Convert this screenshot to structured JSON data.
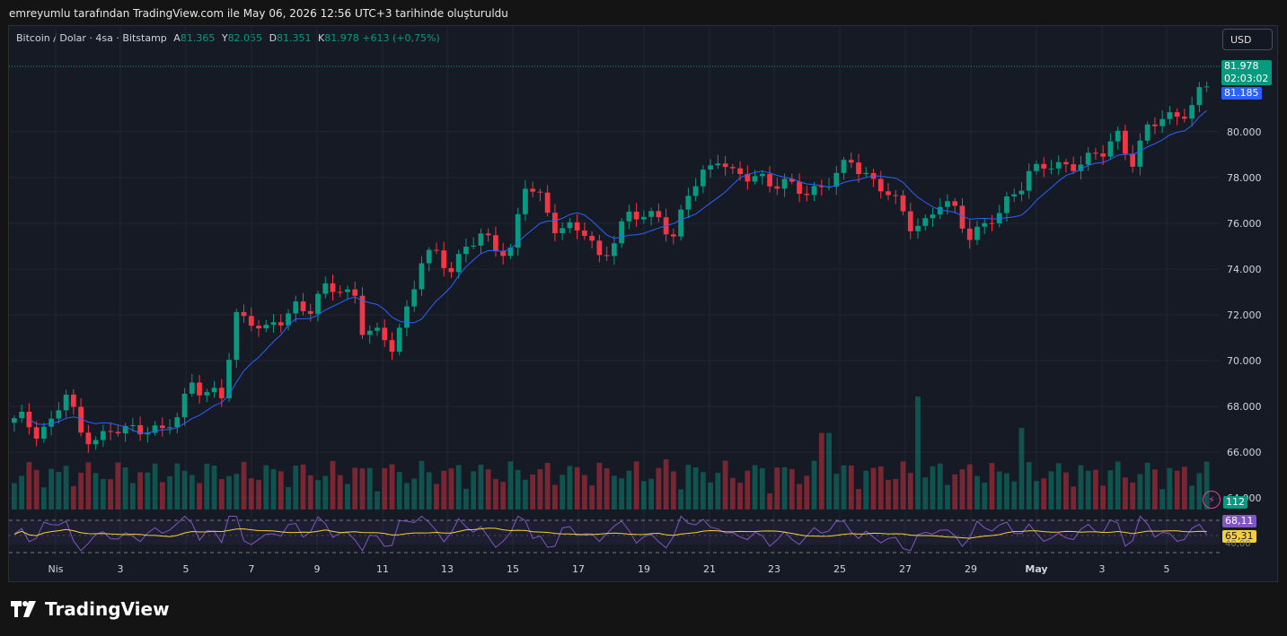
{
  "caption": "emreyumlu tarafından TradingView.com ile May 06, 2026 12:56 UTC+3 tarihinde oluşturuldu",
  "symbol": {
    "name": "Bitcoin / Dolar · 4sa · Bitstamp",
    "open_label": "A",
    "open": "81.365",
    "high_label": "Y",
    "high": "82.055",
    "low_label": "D",
    "low": "81.351",
    "close_label": "K",
    "close": "81.978",
    "change": "+613 (+0,75%)"
  },
  "currency_button": "USD",
  "price_tag": {
    "price": "81.978",
    "countdown": "02:03:02"
  },
  "ma_tag": "81.185",
  "volume_tag": "112",
  "rsi_tag": "68,11",
  "rsi_ma_tag": "65,31",
  "rsi_level_label": "40,00",
  "brand": "TradingView",
  "colors": {
    "up": "#089981",
    "down": "#f23645",
    "ma": "#2962ff",
    "rsi": "#7e57c2",
    "rsi_ma": "#f5cf3b",
    "bg": "#161a25"
  },
  "chart_data": {
    "type": "candlestick",
    "y_ticks": [
      "80.000",
      "78.000",
      "76.000",
      "74.000",
      "72.000",
      "70.000",
      "68.000",
      "66.000",
      "64.000"
    ],
    "x_ticks": [
      "Nis",
      "3",
      "5",
      "7",
      "9",
      "11",
      "13",
      "15",
      "17",
      "19",
      "21",
      "23",
      "25",
      "27",
      "29",
      "May",
      "3",
      "5"
    ],
    "price_range": [
      63500,
      83400
    ],
    "close_anchors": [
      [
        1,
        67400
      ],
      [
        3,
        67000
      ],
      [
        5,
        67300
      ],
      [
        7,
        68500
      ],
      [
        9,
        66800
      ],
      [
        12,
        66700
      ],
      [
        14,
        66900
      ],
      [
        16,
        67000
      ],
      [
        18,
        67200
      ],
      [
        20,
        66800
      ],
      [
        22,
        67500
      ],
      [
        24,
        69200
      ],
      [
        26,
        68600
      ],
      [
        28,
        68300
      ],
      [
        30,
        72000
      ],
      [
        32,
        71900
      ],
      [
        34,
        71200
      ],
      [
        36,
        71700
      ],
      [
        38,
        72500
      ],
      [
        40,
        72300
      ],
      [
        42,
        73000
      ],
      [
        44,
        73200
      ],
      [
        46,
        72900
      ],
      [
        47,
        71400
      ],
      [
        49,
        71000
      ],
      [
        51,
        70700
      ],
      [
        53,
        72300
      ],
      [
        55,
        74300
      ],
      [
        57,
        74600
      ],
      [
        59,
        74100
      ],
      [
        61,
        75000
      ],
      [
        63,
        75300
      ],
      [
        65,
        75000
      ],
      [
        67,
        74900
      ],
      [
        69,
        77600
      ],
      [
        71,
        77000
      ],
      [
        73,
        76000
      ],
      [
        75,
        75800
      ],
      [
        77,
        75500
      ],
      [
        79,
        74500
      ],
      [
        81,
        75400
      ],
      [
        83,
        76300
      ],
      [
        85,
        76200
      ],
      [
        87,
        76500
      ],
      [
        89,
        75300
      ],
      [
        91,
        77200
      ],
      [
        93,
        78200
      ],
      [
        95,
        79000
      ],
      [
        97,
        78000
      ],
      [
        99,
        78000
      ],
      [
        101,
        78100
      ],
      [
        103,
        77700
      ],
      [
        105,
        77500
      ],
      [
        107,
        77400
      ],
      [
        109,
        77700
      ],
      [
        111,
        78000
      ],
      [
        113,
        78700
      ],
      [
        115,
        78200
      ],
      [
        117,
        77600
      ],
      [
        119,
        76800
      ],
      [
        121,
        76000
      ],
      [
        123,
        76100
      ],
      [
        125,
        76800
      ],
      [
        127,
        76500
      ],
      [
        129,
        75600
      ],
      [
        131,
        75900
      ],
      [
        133,
        76300
      ],
      [
        135,
        77400
      ],
      [
        137,
        78300
      ],
      [
        139,
        78400
      ],
      [
        141,
        78400
      ],
      [
        143,
        78700
      ],
      [
        145,
        78800
      ],
      [
        147,
        79000
      ],
      [
        149,
        79900
      ],
      [
        151,
        78800
      ],
      [
        153,
        80000
      ],
      [
        155,
        80600
      ],
      [
        157,
        80800
      ],
      [
        159,
        81100
      ],
      [
        161,
        81978
      ]
    ],
    "volume_range": [
      0,
      1000
    ],
    "rsi_levels": [
      70,
      50,
      30
    ]
  }
}
